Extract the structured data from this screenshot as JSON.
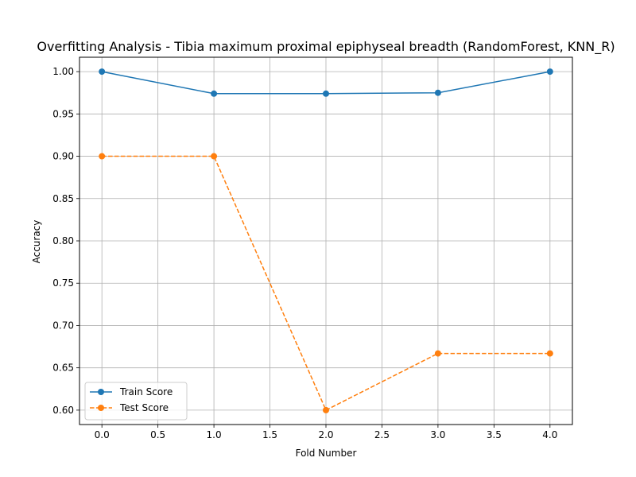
{
  "chart_data": {
    "type": "line",
    "title": "Overfitting Analysis - Tibia maximum proximal epiphyseal breadth (RandomForest, KNN_R)",
    "xlabel": "Fold Number",
    "ylabel": "Accuracy",
    "xlim": [
      -0.2,
      4.2
    ],
    "ylim": [
      0.583,
      1.017
    ],
    "x_ticks": [
      0.0,
      0.5,
      1.0,
      1.5,
      2.0,
      2.5,
      3.0,
      3.5,
      4.0
    ],
    "x_tick_labels": [
      "0.0",
      "0.5",
      "1.0",
      "1.5",
      "2.0",
      "2.5",
      "3.0",
      "3.5",
      "4.0"
    ],
    "y_ticks": [
      0.6,
      0.65,
      0.7,
      0.75,
      0.8,
      0.85,
      0.9,
      0.95,
      1.0
    ],
    "y_tick_labels": [
      "0.60",
      "0.65",
      "0.70",
      "0.75",
      "0.80",
      "0.85",
      "0.90",
      "0.95",
      "1.00"
    ],
    "grid": true,
    "legend_position": "lower-left",
    "x": [
      0,
      1,
      2,
      3,
      4
    ],
    "series": [
      {
        "name": "Train Score",
        "values": [
          1.0,
          0.974,
          0.974,
          0.975,
          1.0
        ],
        "color": "#1f77b4",
        "line_style": "solid",
        "marker": "circle"
      },
      {
        "name": "Test Score",
        "values": [
          0.9,
          0.9,
          0.6,
          0.667,
          0.667
        ],
        "color": "#ff7f0e",
        "line_style": "dashed",
        "marker": "circle"
      }
    ]
  }
}
